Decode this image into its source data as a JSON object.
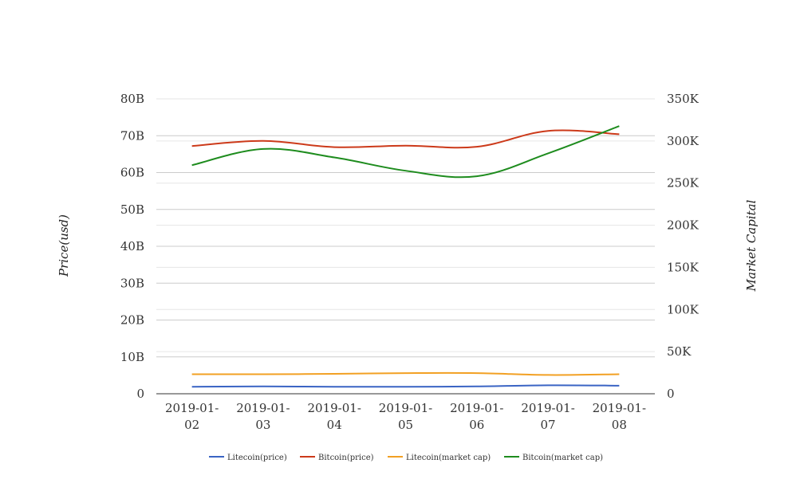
{
  "chart_data": {
    "type": "line",
    "categories": [
      "2019-01-02",
      "2019-01-03",
      "2019-01-04",
      "2019-01-05",
      "2019-01-06",
      "2019-01-07",
      "2019-01-08"
    ],
    "category_lines": [
      [
        "2019-01-",
        "02"
      ],
      [
        "2019-01-",
        "03"
      ],
      [
        "2019-01-",
        "04"
      ],
      [
        "2019-01-",
        "05"
      ],
      [
        "2019-01-",
        "06"
      ],
      [
        "2019-01-",
        "07"
      ],
      [
        "2019-01-",
        "08"
      ]
    ],
    "y_left": {
      "label": "Price(usd)",
      "ylim": [
        0,
        80000000000
      ],
      "ticks": [
        0,
        10000000000,
        20000000000,
        30000000000,
        40000000000,
        50000000000,
        60000000000,
        70000000000,
        80000000000
      ],
      "tick_labels": [
        "0",
        "10B",
        "20B",
        "30B",
        "40B",
        "50B",
        "60B",
        "70B",
        "80B"
      ]
    },
    "y_right": {
      "label": "Market Capital",
      "ylim": [
        0,
        350000
      ],
      "ticks": [
        0,
        50000,
        100000,
        150000,
        200000,
        250000,
        300000,
        350000
      ],
      "tick_labels": [
        "0",
        "50K",
        "100K",
        "150K",
        "200K",
        "250K",
        "300K",
        "350K"
      ]
    },
    "series": [
      {
        "name": "Litecoin(price)",
        "color": "#3a64c4",
        "axis": "left",
        "values": [
          1900000000,
          2000000000,
          1900000000,
          1900000000,
          2000000000,
          2300000000,
          2200000000
        ]
      },
      {
        "name": "Bitcoin(price)",
        "color": "#cc3a1a",
        "axis": "left",
        "values": [
          67200000000,
          68600000000,
          66900000000,
          67300000000,
          67000000000,
          71300000000,
          70400000000
        ]
      },
      {
        "name": "Litecoin(market cap)",
        "color": "#f2a023",
        "axis": "left",
        "values": [
          5300000000,
          5300000000,
          5400000000,
          5600000000,
          5600000000,
          5100000000,
          5300000000
        ]
      },
      {
        "name": "Bitcoin(market cap)",
        "color": "#1e8c1e",
        "axis": "left",
        "values": [
          62000000000,
          66400000000,
          64100000000,
          60500000000,
          59000000000,
          65200000000,
          72600000000
        ]
      }
    ],
    "grid": true,
    "legend_position": "bottom"
  }
}
